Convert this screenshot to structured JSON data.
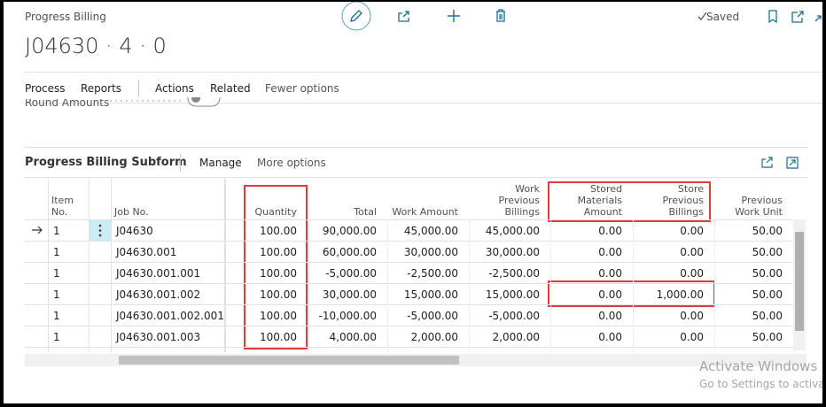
{
  "header": {
    "breadcrumb": "Progress Billing",
    "title": "J04630 · 4 · 0",
    "status": "Saved"
  },
  "menu": [
    "Process",
    "Reports",
    "Actions",
    "Related",
    "Fewer options"
  ],
  "field": {
    "label": "Round Amounts"
  },
  "subform": {
    "title": "Progress Billing Subform",
    "actions": [
      "Manage",
      "More options"
    ]
  },
  "table": {
    "columns": [
      "Item No.",
      "Job No.",
      "Quantity",
      "Total",
      "Work Amount",
      "Work Previous Billings",
      "Stored Materials Amount",
      "Store Previous Billings",
      "Previous Work Unit"
    ],
    "rows": [
      [
        "1",
        "J04630",
        "100.00",
        "90,000.00",
        "45,000.00",
        "45,000.00",
        "0.00",
        "0.00",
        "50.00"
      ],
      [
        "1",
        "J04630.001",
        "100.00",
        "60,000.00",
        "30,000.00",
        "30,000.00",
        "0.00",
        "0.00",
        "50.00"
      ],
      [
        "1",
        "J04630.001.001",
        "100.00",
        "-5,000.00",
        "-2,500.00",
        "-2,500.00",
        "0.00",
        "0.00",
        "50.00"
      ],
      [
        "1",
        "J04630.001.002",
        "100.00",
        "30,000.00",
        "15,000.00",
        "15,000.00",
        "0.00",
        "1,000.00",
        "50.00"
      ],
      [
        "1",
        "J04630.001.002.001",
        "100.00",
        "-10,000.00",
        "-5,000.00",
        "-5,000.00",
        "0.00",
        "0.00",
        "50.00"
      ],
      [
        "1",
        "J04630.001.003",
        "100.00",
        "4,000.00",
        "2,000.00",
        "2,000.00",
        "0.00",
        "0.00",
        "50.00"
      ]
    ]
  },
  "watermark": {
    "title": "Activate Windows",
    "subtitle": "Go to Settings to activate"
  }
}
